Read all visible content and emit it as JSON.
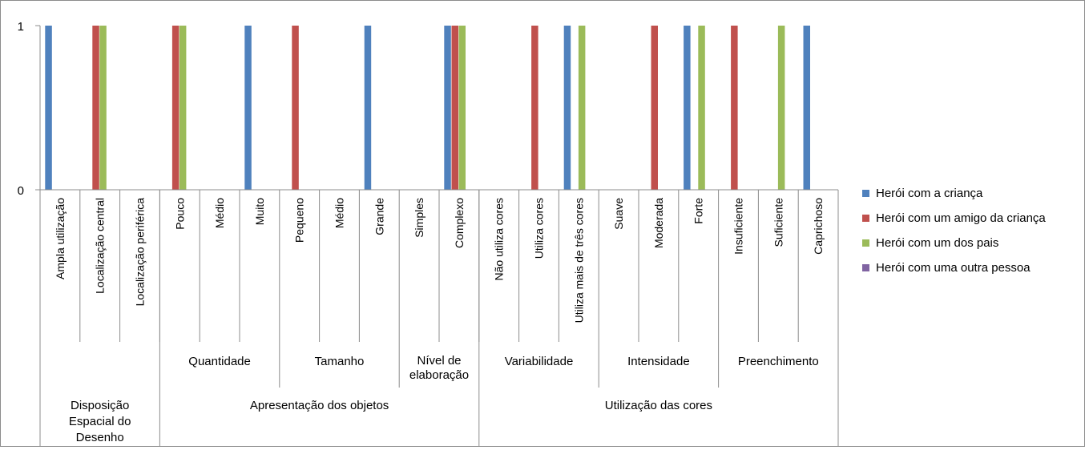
{
  "chart_data": {
    "type": "bar",
    "ylim": [
      0,
      1
    ],
    "yticks": [
      "0",
      "1"
    ],
    "grid": false,
    "legend_position": "right",
    "categories": [
      "Ampla utilização",
      "Localização central",
      "Localização periférica",
      "Pouco",
      "Médio",
      "Muito",
      "Pequeno",
      "Médio",
      "Grande",
      "Simples",
      "Complexo",
      "Não utiliza cores",
      "Utiliza cores",
      "Utiliza mais de três cores",
      "Suave",
      "Moderada",
      "Forte",
      "Insuficiente",
      "Suficiente",
      "Caprichoso"
    ],
    "subgroups": [
      {
        "label": "",
        "lines": [],
        "span": [
          0,
          2
        ]
      },
      {
        "label": "Quantidade",
        "lines": [
          "Quantidade"
        ],
        "span": [
          3,
          5
        ]
      },
      {
        "label": "Tamanho",
        "lines": [
          "Tamanho"
        ],
        "span": [
          6,
          8
        ]
      },
      {
        "label": "Nível de elaboração",
        "lines": [
          "Nível de",
          "elaboração"
        ],
        "span": [
          9,
          10
        ]
      },
      {
        "label": "Variabilidade",
        "lines": [
          "Variabilidade"
        ],
        "span": [
          11,
          13
        ]
      },
      {
        "label": "Intensidade",
        "lines": [
          "Intensidade"
        ],
        "span": [
          14,
          16
        ]
      },
      {
        "label": "Preenchimento",
        "lines": [
          "Preenchimento"
        ],
        "span": [
          17,
          19
        ]
      }
    ],
    "groups": [
      {
        "label": "Disposição Espacial do Desenho",
        "lines": [
          "Disposição",
          "Espacial do",
          "Desenho"
        ],
        "span": [
          0,
          2
        ]
      },
      {
        "label": "Apresentação dos objetos",
        "lines": [
          "Apresentação dos objetos"
        ],
        "span": [
          3,
          10
        ]
      },
      {
        "label": "Utilização das cores",
        "lines": [
          "Utilização das cores"
        ],
        "span": [
          11,
          19
        ]
      }
    ],
    "series": [
      {
        "name": "Herói com a criança",
        "color": "#4f81bd",
        "values": [
          1,
          0,
          0,
          0,
          0,
          1,
          0,
          0,
          1,
          0,
          1,
          0,
          0,
          1,
          0,
          0,
          1,
          0,
          0,
          1
        ]
      },
      {
        "name": "Herói com um amigo da criança",
        "color": "#c0504d",
        "values": [
          0,
          1,
          0,
          1,
          0,
          0,
          1,
          0,
          0,
          0,
          1,
          0,
          1,
          0,
          0,
          1,
          0,
          1,
          0,
          0
        ]
      },
      {
        "name": "Herói com um dos pais",
        "color": "#9bbb59",
        "values": [
          0,
          1,
          0,
          1,
          0,
          0,
          0,
          0,
          0,
          0,
          1,
          0,
          0,
          1,
          0,
          0,
          1,
          0,
          1,
          0
        ]
      },
      {
        "name": "Herói com uma outra pessoa",
        "color": "#8064a2",
        "values": [
          0,
          0,
          0,
          0,
          0,
          0,
          0,
          0,
          0,
          0,
          0,
          0,
          0,
          0,
          0,
          0,
          0,
          0,
          0,
          0
        ]
      }
    ]
  }
}
